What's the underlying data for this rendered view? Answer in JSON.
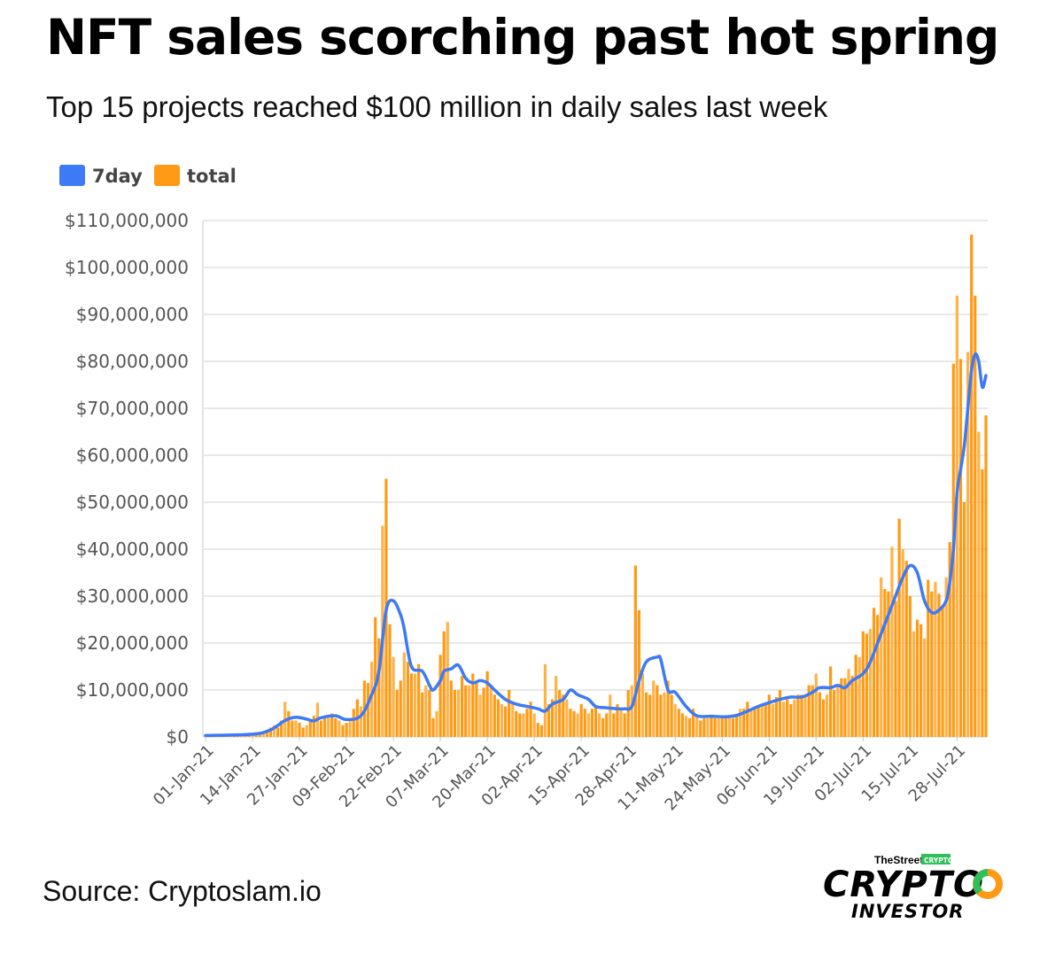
{
  "title": "NFT sales scorching past hot spring",
  "subtitle": "Top 15 projects reached $100 million in daily sales last week",
  "source": "Source: Cryptoslam.io",
  "logo": {
    "top": "TheStreet",
    "badge": "CRYPTO",
    "main": "CRYPTO",
    "sub": "INVESTOR"
  },
  "colors": {
    "7day": "#3d7af5",
    "total": "#ff9a14",
    "total_light": "#ffb247",
    "grid": "#e8e8e8"
  },
  "chart_data": {
    "type": "bar+line",
    "legend_position": "top-left",
    "grid": true,
    "ylim": [
      0,
      110000000
    ],
    "y_ticks": [
      "$0",
      "$10,000,000",
      "$20,000,000",
      "$30,000,000",
      "$40,000,000",
      "$50,000,000",
      "$60,000,000",
      "$70,000,000",
      "$80,000,000",
      "$90,000,000",
      "$100,000,000",
      "$110,000,000"
    ],
    "x_ticks": [
      "01-Jan-21",
      "14-Jan-21",
      "27-Jan-21",
      "09-Feb-21",
      "22-Feb-21",
      "07-Mar-21",
      "20-Mar-21",
      "02-Apr-21",
      "15-Apr-21",
      "28-Apr-21",
      "11-May-21",
      "24-May-21",
      "06-Jun-21",
      "19-Jun-21",
      "02-Jul-21",
      "15-Jul-21",
      "28-Jul-21"
    ],
    "first_date": "01-Jan-21",
    "value_unit": "USD millions",
    "series": [
      {
        "name": "total",
        "type": "bar",
        "values": [
          0.3,
          0.3,
          0.4,
          0.4,
          0.4,
          0.5,
          0.5,
          0.5,
          0.6,
          0.6,
          0.6,
          0.7,
          0.7,
          0.8,
          0.9,
          1,
          1.2,
          1.5,
          2,
          2.5,
          2,
          3.5,
          7.5,
          5.5,
          3.5,
          3.5,
          3,
          2,
          2.5,
          3.5,
          4.5,
          7.3,
          3.5,
          4,
          4,
          5,
          4,
          3.5,
          2.5,
          3,
          3.5,
          6,
          8,
          6.5,
          12,
          11.5,
          16,
          25.5,
          21,
          45,
          55,
          24,
          17,
          10,
          12,
          18,
          16,
          13.5,
          13.5,
          15.5,
          9.5,
          11,
          10,
          4,
          5.5,
          17.5,
          22.5,
          24.5,
          12,
          10,
          10,
          13,
          11,
          11,
          13.5,
          11.5,
          9,
          10.5,
          14,
          11,
          9,
          8,
          7,
          6.5,
          10,
          7,
          5.5,
          5,
          5,
          6,
          7.5,
          5,
          3,
          2.5,
          15.5,
          7,
          8,
          13,
          10,
          9,
          8,
          6,
          5.5,
          5,
          7,
          6,
          5,
          6,
          6.5,
          5,
          4,
          5,
          9,
          5,
          7,
          6,
          5,
          10,
          11,
          36.5,
          27,
          13.5,
          9.5,
          9,
          12,
          11,
          9,
          9.5,
          12,
          9,
          7,
          6,
          5,
          4.5,
          4,
          6,
          4.5,
          3.5,
          4,
          4,
          4.5,
          4,
          4,
          4,
          4.5,
          4,
          4,
          4.5,
          6,
          6,
          7.5,
          5.5,
          6,
          6.5,
          7,
          7,
          9,
          7,
          8.5,
          10,
          7.5,
          8,
          7,
          8,
          9,
          9,
          8.5,
          11,
          11,
          13.5,
          9.5,
          8,
          9,
          15,
          10,
          11,
          12.5,
          12.5,
          14.5,
          13,
          17.5,
          17,
          22.5,
          22,
          23,
          27.5,
          26,
          34,
          31.5,
          31,
          40.5,
          29,
          46.5,
          40,
          37.5,
          30,
          22.5,
          25,
          24,
          21,
          33.5,
          31,
          33,
          30.5,
          28,
          34,
          41.5,
          79.5,
          94,
          80.5,
          50,
          82,
          107,
          94,
          65,
          57,
          68.5
        ]
      },
      {
        "name": "7day",
        "type": "line",
        "points": [
          [
            0,
            0.3
          ],
          [
            13,
            0.6
          ],
          [
            18,
            1.5
          ],
          [
            22,
            3.5
          ],
          [
            25,
            4.2
          ],
          [
            28,
            3.8
          ],
          [
            30,
            3.4
          ],
          [
            32,
            4.1
          ],
          [
            36,
            4.5
          ],
          [
            39,
            3.7
          ],
          [
            43,
            4.5
          ],
          [
            46,
            9
          ],
          [
            48,
            14
          ],
          [
            50,
            27
          ],
          [
            52,
            29
          ],
          [
            54,
            26
          ],
          [
            55,
            23
          ],
          [
            57,
            15
          ],
          [
            60,
            14
          ],
          [
            62,
            11
          ],
          [
            63,
            10
          ],
          [
            65,
            12
          ],
          [
            66,
            14
          ],
          [
            68,
            14.5
          ],
          [
            70,
            15.3
          ],
          [
            72,
            12.5
          ],
          [
            74,
            11.5
          ],
          [
            76,
            12
          ],
          [
            78,
            11.5
          ],
          [
            80,
            10
          ],
          [
            83,
            8
          ],
          [
            86,
            7
          ],
          [
            89,
            6.5
          ],
          [
            92,
            6
          ],
          [
            94,
            5.5
          ],
          [
            96,
            7
          ],
          [
            99,
            8
          ],
          [
            101,
            10
          ],
          [
            103,
            9
          ],
          [
            106,
            8
          ],
          [
            108,
            6.5
          ],
          [
            111,
            6.2
          ],
          [
            114,
            6
          ],
          [
            116,
            6
          ],
          [
            118,
            6.5
          ],
          [
            120,
            12
          ],
          [
            122,
            16
          ],
          [
            125,
            17
          ],
          [
            126,
            16.5
          ],
          [
            128,
            10
          ],
          [
            130,
            9.5
          ],
          [
            133,
            6.5
          ],
          [
            136,
            4.5
          ],
          [
            140,
            4.4
          ],
          [
            144,
            4.3
          ],
          [
            147,
            4.6
          ],
          [
            150,
            5.5
          ],
          [
            153,
            6.5
          ],
          [
            156,
            7.3
          ],
          [
            159,
            8
          ],
          [
            162,
            8.5
          ],
          [
            165,
            8.5
          ],
          [
            168,
            9.5
          ],
          [
            170,
            10.5
          ],
          [
            173,
            10.5
          ],
          [
            175,
            11
          ],
          [
            177,
            10.5
          ],
          [
            179,
            12
          ],
          [
            182,
            13.5
          ],
          [
            184,
            16
          ],
          [
            187,
            22
          ],
          [
            190,
            28
          ],
          [
            193,
            34
          ],
          [
            195,
            36.5
          ],
          [
            197,
            35
          ],
          [
            199,
            29
          ],
          [
            201,
            26.5
          ],
          [
            203,
            27
          ],
          [
            205,
            29
          ],
          [
            206,
            33
          ],
          [
            207,
            40
          ],
          [
            208,
            52
          ],
          [
            209,
            57
          ],
          [
            210,
            62
          ],
          [
            211,
            70
          ],
          [
            212,
            78
          ],
          [
            213,
            81.5
          ],
          [
            214,
            80
          ],
          [
            215,
            74.5
          ],
          [
            216,
            77
          ]
        ]
      }
    ],
    "legend": [
      "7day",
      "total"
    ]
  }
}
